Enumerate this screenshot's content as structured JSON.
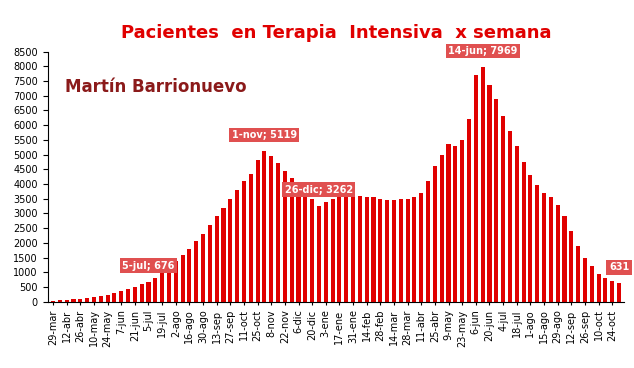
{
  "chart_data": {
    "type": "bar",
    "title": "Pacientes  en Terapia  Intensiva  x semana",
    "subtitle": "Martín Barrionuevo",
    "categories": [
      "29-mar",
      null,
      "12-abr",
      null,
      "26-abr",
      null,
      "10-may",
      null,
      "24-may",
      null,
      "7-jun",
      null,
      "21-jun",
      null,
      "5-jul",
      null,
      "19-jul",
      null,
      "2-ago",
      null,
      "16-ago",
      null,
      "30-ago",
      null,
      "13-sep",
      null,
      "27-sep",
      null,
      "11-oct",
      null,
      "25-oct",
      null,
      "8-nov",
      null,
      "22-nov",
      null,
      "6-dic",
      null,
      "20-dic",
      null,
      "3-ene",
      null,
      "17-ene",
      null,
      "31-ene",
      null,
      "14-feb",
      null,
      "28-feb",
      null,
      "14-mar",
      null,
      "28-mar",
      null,
      "11-abr",
      null,
      "25-abr",
      null,
      "9-may",
      null,
      "23-may",
      null,
      "6-jun",
      null,
      "20-jun",
      null,
      "4-jul",
      null,
      "18-jul",
      null,
      "1-ago",
      null,
      "15-ago",
      null,
      "29-ago",
      null,
      "12-sep",
      null,
      "26-sep",
      null,
      "10-oct",
      null,
      "24-oct",
      null
    ],
    "values": [
      30,
      50,
      70,
      90,
      110,
      140,
      170,
      200,
      240,
      290,
      350,
      420,
      500,
      590,
      676,
      800,
      1000,
      1200,
      1400,
      1600,
      1800,
      2050,
      2300,
      2600,
      2900,
      3200,
      3500,
      3800,
      4100,
      4350,
      4800,
      5119,
      4950,
      4700,
      4450,
      4200,
      3950,
      3700,
      3500,
      3262,
      3400,
      3500,
      3600,
      3650,
      3600,
      3600,
      3550,
      3550,
      3500,
      3450,
      3450,
      3500,
      3500,
      3550,
      3700,
      4100,
      4600,
      5000,
      5350,
      5300,
      5500,
      6200,
      7700,
      7969,
      7350,
      6900,
      6300,
      5800,
      5300,
      4750,
      4300,
      3950,
      3700,
      3550,
      3300,
      2900,
      2400,
      1900,
      1500,
      1200,
      950,
      800,
      720,
      631
    ],
    "color": "#e00000",
    "annotations": [
      {
        "text": "5-jul; 676",
        "value": 676
      },
      {
        "text": "1-nov; 5119",
        "value": 5119
      },
      {
        "text": "26-dic; 3262",
        "value": 3262
      },
      {
        "text": "14-jun; 7969",
        "value": 7969
      },
      {
        "text": "631",
        "value": 631
      }
    ],
    "ylim": [
      0,
      8500
    ],
    "yticks": [
      0,
      500,
      1000,
      1500,
      2000,
      2500,
      3000,
      3500,
      4000,
      4500,
      5000,
      5500,
      6000,
      6500,
      7000,
      7500,
      8000,
      8500
    ],
    "grid": false
  }
}
